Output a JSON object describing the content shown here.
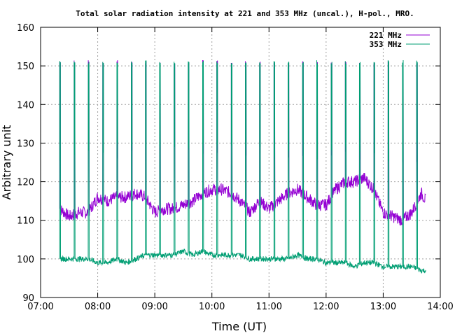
{
  "chart_data": {
    "type": "line",
    "title": "Total solar radiation intensity at 221 and 353 MHz (uncal.), H-pol., MRO.",
    "xlabel": "Time (UT)",
    "ylabel": "Arbitrary unit",
    "xlim": [
      "07:00",
      "14:00"
    ],
    "ylim": [
      90,
      160
    ],
    "x_ticks": [
      "07:00",
      "08:00",
      "09:00",
      "10:00",
      "11:00",
      "12:00",
      "13:00",
      "14:00"
    ],
    "y_ticks": [
      90,
      100,
      110,
      120,
      130,
      140,
      150,
      160
    ],
    "grid": true,
    "legend_position": "top-right",
    "calibration_spike_times": [
      "07:20",
      "07:35",
      "07:50",
      "08:05",
      "08:20",
      "08:35",
      "08:50",
      "09:05",
      "09:20",
      "09:35",
      "09:50",
      "10:05",
      "10:20",
      "10:35",
      "10:50",
      "11:05",
      "11:20",
      "11:35",
      "11:50",
      "12:05",
      "12:20",
      "12:35",
      "12:50",
      "13:05",
      "13:20",
      "13:35"
    ],
    "series": [
      {
        "name": "221 MHz",
        "color": "#9400d3",
        "spike_peak": 151,
        "x": [
          "07:20",
          "07:30",
          "07:40",
          "07:50",
          "08:00",
          "08:10",
          "08:20",
          "08:30",
          "08:40",
          "08:50",
          "09:00",
          "09:10",
          "09:20",
          "09:30",
          "09:40",
          "09:50",
          "10:00",
          "10:10",
          "10:20",
          "10:30",
          "10:40",
          "10:50",
          "11:00",
          "11:10",
          "11:20",
          "11:30",
          "11:40",
          "11:50",
          "12:00",
          "12:10",
          "12:20",
          "12:30",
          "12:40",
          "12:50",
          "13:00",
          "13:10",
          "13:20",
          "13:30",
          "13:40",
          "13:45"
        ],
        "values": [
          113,
          111,
          112,
          112,
          116,
          115,
          116,
          116,
          117,
          116,
          112,
          113,
          113,
          114,
          115,
          117,
          118,
          118,
          117,
          115,
          112,
          115,
          113,
          115,
          117,
          118,
          116,
          114,
          114,
          118,
          120,
          120,
          121,
          118,
          112,
          111,
          110,
          112,
          117,
          115
        ]
      },
      {
        "name": "353 MHz",
        "color": "#009e73",
        "spike_peak": 151,
        "x": [
          "07:20",
          "07:30",
          "07:40",
          "07:50",
          "08:00",
          "08:10",
          "08:20",
          "08:30",
          "08:40",
          "08:50",
          "09:00",
          "09:10",
          "09:20",
          "09:30",
          "09:40",
          "09:50",
          "10:00",
          "10:10",
          "10:20",
          "10:30",
          "10:40",
          "10:50",
          "11:00",
          "11:10",
          "11:20",
          "11:30",
          "11:40",
          "11:50",
          "12:00",
          "12:10",
          "12:20",
          "12:30",
          "12:40",
          "12:50",
          "13:00",
          "13:10",
          "13:20",
          "13:30",
          "13:40",
          "13:45"
        ],
        "values": [
          100,
          100,
          100,
          100,
          99,
          99,
          100,
          99,
          100,
          101,
          101,
          101,
          101,
          102,
          101,
          102,
          101,
          101,
          101,
          101,
          100,
          100,
          100,
          100,
          100,
          101,
          100,
          100,
          99,
          99,
          99,
          98,
          99,
          99,
          98,
          98,
          98,
          98,
          97,
          97
        ]
      }
    ]
  }
}
